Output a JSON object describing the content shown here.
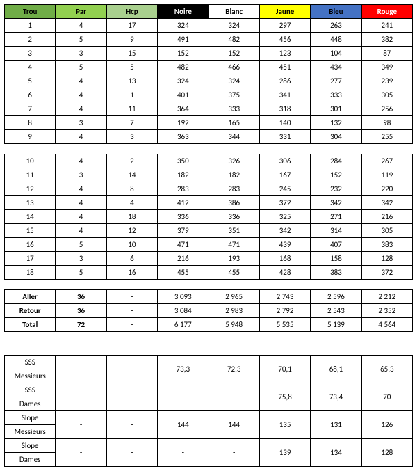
{
  "headers": {
    "trou": "Trou",
    "par": "Par",
    "hcp": "Hcp",
    "noire": "Noire",
    "blanc": "Blanc",
    "jaune": "Jaune",
    "bleu": "Bleu",
    "rouge": "Rouge"
  },
  "colors": {
    "trou_bg": "#70ad47",
    "par_bg": "#92d050",
    "hcp_bg": "#a9d08e",
    "noire_bg": "#000000",
    "noire_fg": "#ffffff",
    "blanc_bg": "#ffffff",
    "jaune_bg": "#ffff00",
    "bleu_bg": "#4472c4",
    "rouge_bg": "#ff0000",
    "rouge_fg": "#ffffff"
  },
  "front9": [
    {
      "trou": "1",
      "par": "4",
      "hcp": "17",
      "noire": "324",
      "blanc": "324",
      "jaune": "297",
      "bleu": "263",
      "rouge": "241"
    },
    {
      "trou": "2",
      "par": "5",
      "hcp": "9",
      "noire": "491",
      "blanc": "482",
      "jaune": "456",
      "bleu": "448",
      "rouge": "382"
    },
    {
      "trou": "3",
      "par": "3",
      "hcp": "15",
      "noire": "152",
      "blanc": "152",
      "jaune": "123",
      "bleu": "104",
      "rouge": "87"
    },
    {
      "trou": "4",
      "par": "5",
      "hcp": "5",
      "noire": "482",
      "blanc": "466",
      "jaune": "451",
      "bleu": "434",
      "rouge": "349"
    },
    {
      "trou": "5",
      "par": "4",
      "hcp": "13",
      "noire": "324",
      "blanc": "324",
      "jaune": "286",
      "bleu": "277",
      "rouge": "239"
    },
    {
      "trou": "6",
      "par": "4",
      "hcp": "1",
      "noire": "401",
      "blanc": "375",
      "jaune": "341",
      "bleu": "333",
      "rouge": "305"
    },
    {
      "trou": "7",
      "par": "4",
      "hcp": "11",
      "noire": "364",
      "blanc": "333",
      "jaune": "318",
      "bleu": "301",
      "rouge": "256"
    },
    {
      "trou": "8",
      "par": "3",
      "hcp": "7",
      "noire": "192",
      "blanc": "165",
      "jaune": "140",
      "bleu": "132",
      "rouge": "98"
    },
    {
      "trou": "9",
      "par": "4",
      "hcp": "3",
      "noire": "363",
      "blanc": "344",
      "jaune": "331",
      "bleu": "304",
      "rouge": "255"
    }
  ],
  "back9": [
    {
      "trou": "10",
      "par": "4",
      "hcp": "2",
      "noire": "350",
      "blanc": "326",
      "jaune": "306",
      "bleu": "284",
      "rouge": "267"
    },
    {
      "trou": "11",
      "par": "3",
      "hcp": "14",
      "noire": "182",
      "blanc": "182",
      "jaune": "167",
      "bleu": "152",
      "rouge": "119"
    },
    {
      "trou": "12",
      "par": "4",
      "hcp": "8",
      "noire": "283",
      "blanc": "283",
      "jaune": "245",
      "bleu": "232",
      "rouge": "220"
    },
    {
      "trou": "13",
      "par": "4",
      "hcp": "4",
      "noire": "412",
      "blanc": "386",
      "jaune": "372",
      "bleu": "342",
      "rouge": "342"
    },
    {
      "trou": "14",
      "par": "4",
      "hcp": "18",
      "noire": "336",
      "blanc": "336",
      "jaune": "325",
      "bleu": "271",
      "rouge": "216"
    },
    {
      "trou": "15",
      "par": "4",
      "hcp": "12",
      "noire": "379",
      "blanc": "351",
      "jaune": "342",
      "bleu": "314",
      "rouge": "305"
    },
    {
      "trou": "16",
      "par": "5",
      "hcp": "10",
      "noire": "471",
      "blanc": "471",
      "jaune": "439",
      "bleu": "407",
      "rouge": "383"
    },
    {
      "trou": "17",
      "par": "3",
      "hcp": "6",
      "noire": "216",
      "blanc": "193",
      "jaune": "168",
      "bleu": "158",
      "rouge": "128"
    },
    {
      "trou": "18",
      "par": "5",
      "hcp": "16",
      "noire": "455",
      "blanc": "455",
      "jaune": "428",
      "bleu": "383",
      "rouge": "372"
    }
  ],
  "totals": [
    {
      "label": "Aller",
      "par": "36",
      "hcp": "-",
      "noire": "3 093",
      "blanc": "2 965",
      "jaune": "2 743",
      "bleu": "2 596",
      "rouge": "2 212"
    },
    {
      "label": "Retour",
      "par": "36",
      "hcp": "-",
      "noire": "3 084",
      "blanc": "2 983",
      "jaune": "2 792",
      "bleu": "2 543",
      "rouge": "2 352"
    },
    {
      "label": "Total",
      "par": "72",
      "hcp": "-",
      "noire": "6 177",
      "blanc": "5 948",
      "jaune": "5 535",
      "bleu": "5 139",
      "rouge": "4 564"
    }
  ],
  "ratings": {
    "sss_m": {
      "l1": "SSS",
      "l2": "Messieurs",
      "par": "-",
      "hcp": "-",
      "noire": "73,3",
      "blanc": "72,3",
      "jaune": "70,1",
      "bleu": "68,1",
      "rouge": "65,3"
    },
    "sss_d": {
      "l1": "SSS",
      "l2": "Dames",
      "par": "-",
      "hcp": "-",
      "noire": "-",
      "blanc": "-",
      "jaune": "75,8",
      "bleu": "73,4",
      "rouge": "70"
    },
    "slope_m": {
      "l1": "Slope",
      "l2": "Messieurs",
      "par": "-",
      "hcp": "-",
      "noire": "144",
      "blanc": "144",
      "jaune": "135",
      "bleu": "131",
      "rouge": "126"
    },
    "slope_d": {
      "l1": "Slope",
      "l2": "Dames",
      "par": "-",
      "hcp": "-",
      "noire": "-",
      "blanc": "-",
      "jaune": "139",
      "bleu": "134",
      "rouge": "128"
    }
  }
}
